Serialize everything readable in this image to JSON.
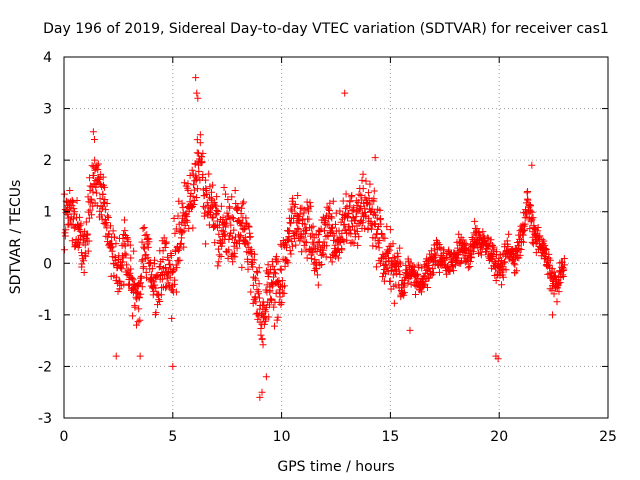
{
  "chart_data": {
    "type": "scatter",
    "title": "Day 196 of 2019, Sidereal Day-to-day VTEC variation (SDTVAR) for receiver cas1",
    "xlabel": "GPS time / hours",
    "ylabel": "SDTVAR / TECUs",
    "xlim": [
      0,
      25
    ],
    "ylim": [
      -3,
      4
    ],
    "xticks": [
      0,
      5,
      10,
      15,
      20,
      25
    ],
    "yticks": [
      -3,
      -2,
      -1,
      0,
      1,
      2,
      3,
      4
    ],
    "xtick_labels": [
      "0",
      "5",
      "10",
      "15",
      "20",
      "25"
    ],
    "ytick_labels": [
      "-3",
      "-2",
      "-1",
      "0",
      "1",
      "2",
      "3",
      "4"
    ],
    "grid": true,
    "marker": "+",
    "color": "#ff0000",
    "series": [
      {
        "name": "cas1",
        "trend": [
          [
            0.0,
            0.9
          ],
          [
            0.3,
            1.0
          ],
          [
            0.6,
            0.6
          ],
          [
            0.9,
            0.3
          ],
          [
            1.2,
            1.0
          ],
          [
            1.4,
            1.7
          ],
          [
            1.7,
            1.5
          ],
          [
            2.0,
            0.8
          ],
          [
            2.2,
            0.3
          ],
          [
            2.5,
            -0.2
          ],
          [
            2.8,
            0.2
          ],
          [
            3.1,
            -0.4
          ],
          [
            3.4,
            -0.8
          ],
          [
            3.7,
            0.3
          ],
          [
            4.0,
            -0.2
          ],
          [
            4.3,
            -0.5
          ],
          [
            4.6,
            0.2
          ],
          [
            5.0,
            -0.3
          ],
          [
            5.3,
            0.6
          ],
          [
            5.6,
            0.9
          ],
          [
            5.9,
            1.4
          ],
          [
            6.2,
            2.0
          ],
          [
            6.5,
            1.3
          ],
          [
            6.8,
            1.2
          ],
          [
            7.1,
            0.5
          ],
          [
            7.4,
            0.9
          ],
          [
            7.7,
            0.4
          ],
          [
            8.0,
            0.9
          ],
          [
            8.3,
            0.5
          ],
          [
            8.6,
            0.2
          ],
          [
            8.9,
            -0.6
          ],
          [
            9.1,
            -1.4
          ],
          [
            9.3,
            -0.7
          ],
          [
            9.6,
            -0.2
          ],
          [
            10.0,
            -0.4
          ],
          [
            10.3,
            0.6
          ],
          [
            10.6,
            0.8
          ],
          [
            11.0,
            0.7
          ],
          [
            11.3,
            0.6
          ],
          [
            11.6,
            0.1
          ],
          [
            12.0,
            0.5
          ],
          [
            12.3,
            0.7
          ],
          [
            12.6,
            0.3
          ],
          [
            12.9,
            0.8
          ],
          [
            13.2,
            0.9
          ],
          [
            13.5,
            0.8
          ],
          [
            13.8,
            1.2
          ],
          [
            14.1,
            1.0
          ],
          [
            14.4,
            0.6
          ],
          [
            14.7,
            0.2
          ],
          [
            15.0,
            0.0
          ],
          [
            15.3,
            -0.1
          ],
          [
            15.6,
            -0.5
          ],
          [
            15.9,
            0.0
          ],
          [
            16.2,
            -0.4
          ],
          [
            16.5,
            -0.3
          ],
          [
            16.8,
            -0.1
          ],
          [
            17.1,
            0.2
          ],
          [
            17.4,
            0.1
          ],
          [
            17.7,
            0.0
          ],
          [
            18.0,
            0.1
          ],
          [
            18.3,
            0.3
          ],
          [
            18.6,
            0.1
          ],
          [
            18.9,
            0.5
          ],
          [
            19.2,
            0.4
          ],
          [
            19.5,
            0.3
          ],
          [
            19.8,
            0.0
          ],
          [
            20.1,
            -0.2
          ],
          [
            20.4,
            0.3
          ],
          [
            20.7,
            0.1
          ],
          [
            21.0,
            0.5
          ],
          [
            21.3,
            1.2
          ],
          [
            21.6,
            0.6
          ],
          [
            21.9,
            0.3
          ],
          [
            22.2,
            0.1
          ],
          [
            22.5,
            -0.3
          ],
          [
            22.7,
            -0.5
          ],
          [
            22.9,
            0.0
          ],
          [
            23.0,
            0.0
          ]
        ],
        "extremes": [
          [
            6.05,
            3.6
          ],
          [
            6.1,
            3.3
          ],
          [
            6.15,
            3.2
          ],
          [
            12.9,
            3.3
          ],
          [
            9.0,
            -2.6
          ],
          [
            9.1,
            -2.5
          ],
          [
            9.3,
            -2.2
          ],
          [
            19.85,
            -1.8
          ],
          [
            19.95,
            -1.85
          ],
          [
            1.35,
            2.55
          ],
          [
            1.4,
            2.4
          ],
          [
            14.3,
            2.05
          ],
          [
            22.45,
            -1.0
          ],
          [
            15.9,
            -1.3
          ],
          [
            21.5,
            1.9
          ],
          [
            3.5,
            -1.8
          ],
          [
            2.4,
            -1.8
          ],
          [
            5.0,
            -2.0
          ]
        ]
      }
    ]
  }
}
